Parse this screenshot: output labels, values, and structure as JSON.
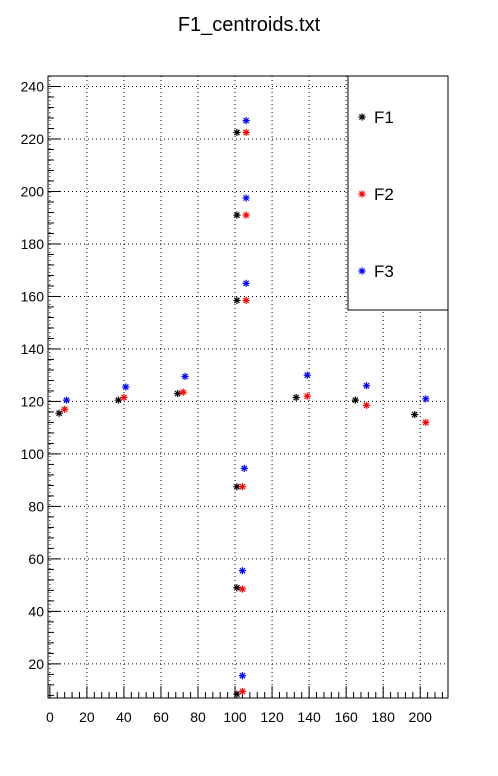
{
  "chart_data": {
    "type": "scatter",
    "title": "F1_centroids.txt",
    "xlabel": "",
    "ylabel": "",
    "xlim": [
      -1,
      215
    ],
    "ylim": [
      7,
      244
    ],
    "x_ticks": [
      0,
      20,
      40,
      60,
      80,
      100,
      120,
      140,
      160,
      180,
      200
    ],
    "y_ticks": [
      20,
      40,
      60,
      80,
      100,
      120,
      140,
      160,
      180,
      200,
      220,
      240
    ],
    "grid": true,
    "legend_position": "top-right",
    "marker": "asterisk",
    "series": [
      {
        "name": "F1",
        "color": "#000000",
        "points": [
          [
            5,
            115.5
          ],
          [
            37,
            120.5
          ],
          [
            69,
            123
          ],
          [
            101,
            222.5
          ],
          [
            101,
            191
          ],
          [
            101,
            158.5
          ],
          [
            101,
            87.5
          ],
          [
            101,
            49
          ],
          [
            101,
            8.5
          ],
          [
            133,
            121.5
          ],
          [
            165,
            120.5
          ],
          [
            197,
            115
          ]
        ]
      },
      {
        "name": "F2",
        "color": "#ff0000",
        "points": [
          [
            8,
            117
          ],
          [
            40,
            121.5
          ],
          [
            72,
            123.5
          ],
          [
            106,
            222.5
          ],
          [
            106,
            191
          ],
          [
            106,
            158.5
          ],
          [
            104,
            87.5
          ],
          [
            104,
            48.5
          ],
          [
            104,
            9.5
          ],
          [
            139,
            122
          ],
          [
            171,
            118.5
          ],
          [
            203,
            112
          ]
        ]
      },
      {
        "name": "F3",
        "color": "#0000ff",
        "points": [
          [
            9,
            120.5
          ],
          [
            41,
            125.5
          ],
          [
            73,
            129.5
          ],
          [
            106,
            227
          ],
          [
            106,
            197.5
          ],
          [
            106,
            165
          ],
          [
            105,
            94.5
          ],
          [
            104,
            55.5
          ],
          [
            104,
            15.5
          ],
          [
            139,
            130
          ],
          [
            171,
            126
          ],
          [
            203,
            121
          ]
        ]
      }
    ]
  }
}
